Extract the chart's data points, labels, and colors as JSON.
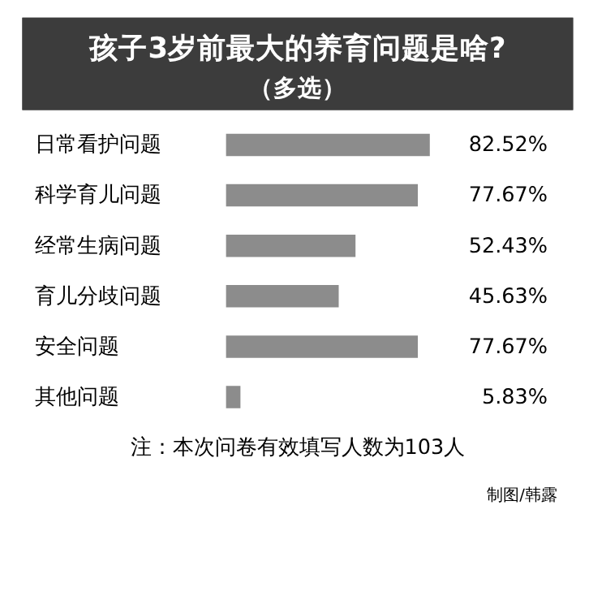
{
  "chart_data": {
    "type": "bar",
    "orientation": "horizontal",
    "title": "孩子3岁前最大的养育问题是啥?",
    "subtitle": "（多选）",
    "categories": [
      "日常看护问题",
      "科学育儿问题",
      "经常生病问题",
      "育儿分歧问题",
      "安全问题",
      "其他问题"
    ],
    "values": [
      82.52,
      77.67,
      52.43,
      45.63,
      77.67,
      5.83
    ],
    "value_labels": [
      "82.52%",
      "77.67%",
      "52.43%",
      "45.63%",
      "77.67%",
      "5.83%"
    ],
    "color": "#8c8c8c",
    "annotations": [
      "注：本次问卷有效填写人数为103人",
      "制图/韩露"
    ]
  }
}
